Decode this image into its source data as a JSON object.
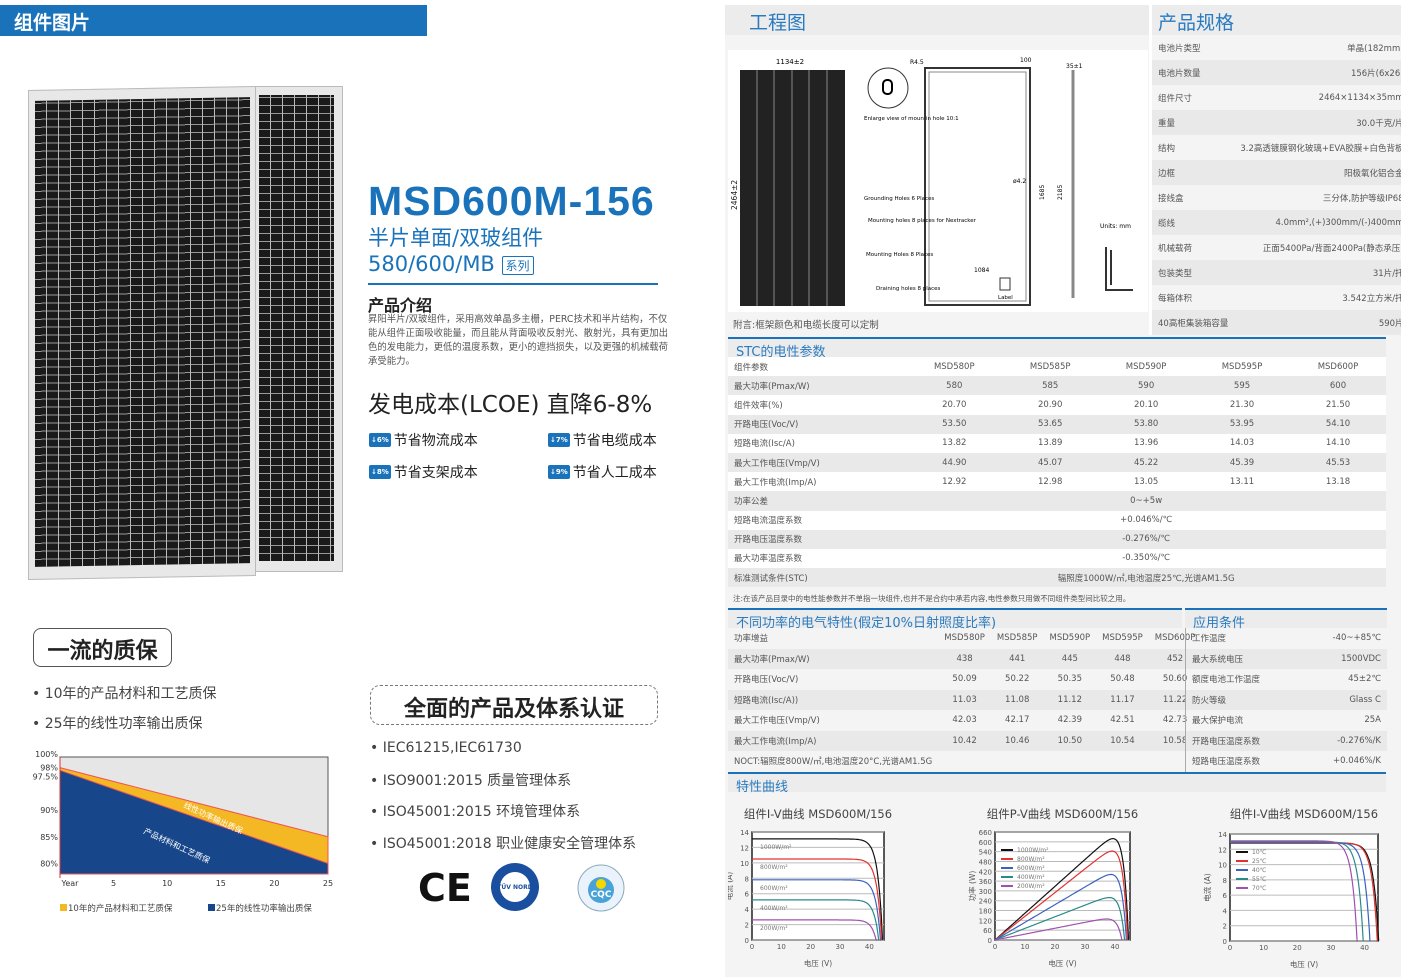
{
  "left": {
    "header": "组件图片",
    "quality_title": "一流的质保",
    "quality_items": [
      "10年的产品材料和工艺质保",
      "25年的线性功率输出质保"
    ]
  },
  "product": {
    "model": "MSD600M-156",
    "subtitle": "半片单面/双玻组件",
    "series": "580/600/MB",
    "series_tag": "系列",
    "intro_title": "产品介绍",
    "intro_text": "昇阳半片/双玻组件，采用高效单晶多主栅，PERC技术和半片结构，不仅能从组件正面吸收能量，而且能从背面吸收反射光、散射光，具有更加出色的发电能力，更低的温度系数，更小的遮挡损失，以及更强的机械载荷承受能力。",
    "lcoe": "发电成本(LCOE) 直降6-8%",
    "features": [
      {
        "badge": "↓6%",
        "label": "节省物流成本"
      },
      {
        "badge": "↓7%",
        "label": "节省电缆成本"
      },
      {
        "badge": "↓8%",
        "label": "节省支架成本"
      },
      {
        "badge": "↓9%",
        "label": "节省人工成本"
      }
    ]
  },
  "certs": {
    "title": "全面的产品及体系认证",
    "items": [
      "IEC61215,IEC61730",
      "ISO9001:2015 质量管理体系",
      "ISO45001:2015 环境管理体系",
      "ISO45001:2018 职业健康安全管理体系"
    ],
    "logos": [
      "CE",
      "TÜV NORD Type Tested",
      "CQC"
    ]
  },
  "drawing": {
    "header": "工程图",
    "note": "附言:框架颜色和电缆长度可以定制",
    "dims": [
      "1134±2",
      "2464±2",
      "R4.5",
      "100",
      "35±1",
      "1685",
      "2185",
      "400",
      "1084",
      "ø4.2",
      "35"
    ],
    "labels": [
      "Enlarge view of mountin  hole 10:1",
      "Grounding Holes 6 Places",
      "Mounting holes 8 places for Nextracker",
      "Mounting Holes 8 Places",
      "Draining holes 8 places",
      "Label",
      "Units:  mm"
    ]
  },
  "specs": {
    "header": "产品规格",
    "rows": [
      [
        "电池片类型",
        "单晶(182mm)"
      ],
      [
        "电池片数量",
        "156片(6x26)"
      ],
      [
        "组件尺寸",
        "2464×1134×35mm"
      ],
      [
        "重量",
        "30.0千克/片"
      ],
      [
        "结构",
        "3.2高透镀膜钢化玻璃+EVA胶膜+白色背板"
      ],
      [
        "边框",
        "阳极氧化铝合金"
      ],
      [
        "接线盒",
        "三分体,防护等级IP68"
      ],
      [
        "缆线",
        "4.0mm²,(+)300mm/(-)400mm"
      ],
      [
        "机械载荷",
        "正面5400Pa/背面2400Pa(静态承压)"
      ],
      [
        "包装类型",
        "31片/托"
      ],
      [
        "每箱体积",
        "3.542立方米/托"
      ],
      [
        "40高柜集装箱容量",
        "590片"
      ]
    ]
  },
  "stc": {
    "header": "STC的电性参数",
    "columns": [
      "组件参数",
      "MSD580P",
      "MSD585P",
      "MSD590P",
      "MSD595P",
      "MSD600P"
    ],
    "rows": [
      [
        "最大功率(Pmax/W)",
        "580",
        "585",
        "590",
        "595",
        "600"
      ],
      [
        "组件效率(%)",
        "20.70",
        "20.90",
        "20.10",
        "21.30",
        "21.50"
      ],
      [
        "开路电压(Voc/V)",
        "53.50",
        "53.65",
        "53.80",
        "53.95",
        "54.10"
      ],
      [
        "短路电流(Isc/A)",
        "13.82",
        "13.89",
        "13.96",
        "14.03",
        "14.10"
      ],
      [
        "最大工作电压(Vmp/V)",
        "44.90",
        "45.07",
        "45.22",
        "45.39",
        "45.53"
      ],
      [
        "最大工作电流(Imp/A)",
        "12.92",
        "12.98",
        "13.05",
        "13.11",
        "13.18"
      ]
    ],
    "span_rows": [
      [
        "功率公差",
        "0~+5w"
      ],
      [
        "短路电流温度系数",
        "+0.046%/℃"
      ],
      [
        "开路电压温度系数",
        "-0.276%/℃"
      ],
      [
        "最大功率温度系数",
        "-0.350%/℃"
      ],
      [
        "标准测试条件(STC)",
        "辐照度1000W/㎡,电池温度25℃,光谱AM1.5G"
      ]
    ],
    "note": "注:在该产品目录中的电性能参数并不单指一块组件,也并不是合约中承若内容,电性参数只用做不同组件类型间比较之用。"
  },
  "noct": {
    "header": "不同功率的电气特性(假定10%日射照度比率)",
    "columns": [
      "功率增益",
      "MSD580P",
      "MSD585P",
      "MSD590P",
      "MSD595P",
      "MSD600P"
    ],
    "rows": [
      [
        "最大功率(Pmax/W)",
        "438",
        "441",
        "445",
        "448",
        "452"
      ],
      [
        "开路电压(Voc/V)",
        "50.09",
        "50.22",
        "50.35",
        "50.48",
        "50.60"
      ],
      [
        "短路电流(Isc/A))",
        "11.03",
        "11.08",
        "11.12",
        "11.17",
        "11.22"
      ],
      [
        "最大工作电压(Vmp/V)",
        "42.03",
        "42.17",
        "42.39",
        "42.51",
        "42.73"
      ],
      [
        "最大工作电流(Imp/A)",
        "10.42",
        "10.46",
        "10.50",
        "10.54",
        "10.58"
      ]
    ],
    "note": "NOCT:辐照度800W/㎡,电池温度20°C,光谱AM1.5G"
  },
  "conditions": {
    "header": "应用条件",
    "rows": [
      [
        "工作温度",
        "-40~+85℃"
      ],
      [
        "最大系统电压",
        "1500VDC"
      ],
      [
        "额度电池工作温度",
        "45±2℃"
      ],
      [
        "防火等级",
        "Glass C"
      ],
      [
        "最大保护电流",
        "25A"
      ],
      [
        "开路电压温度系数",
        "-0.276%/K"
      ],
      [
        "短路电压温度系数",
        "+0.046%/K"
      ]
    ]
  },
  "curves_header": "特性曲线",
  "colors": {
    "brand": "#1a73ba",
    "warranty_yellow": "#f4b824",
    "warranty_blue": "#17478a"
  },
  "chart_data": [
    {
      "type": "area",
      "title": "",
      "xlabel": "Year",
      "x_ticks": [
        "Year",
        "5",
        "10",
        "15",
        "20",
        "25"
      ],
      "y_ticks": [
        "100%",
        "98%",
        "97.5%",
        "90%",
        "85%",
        "80%"
      ],
      "xlim": [
        0,
        25
      ],
      "ylim": [
        78,
        100
      ],
      "series": [
        {
          "name": "10年的产品材料和工艺质保",
          "color": "#f4b824",
          "x": [
            0,
            25
          ],
          "y": [
            98,
            85
          ]
        },
        {
          "name": "25年的线性功率输出质保",
          "color": "#17478a",
          "x": [
            0,
            25
          ],
          "y": [
            97.5,
            80
          ]
        }
      ],
      "annotations": [
        "线性功率输出质保",
        "产品材料和工艺质保"
      ],
      "legend": "bottom"
    },
    {
      "type": "line",
      "title": "组件I-V曲线 MSD600M/156",
      "xlabel": "电压 (V)",
      "ylabel": "电流 (A)",
      "xlim": [
        0,
        45
      ],
      "ylim": [
        0,
        14
      ],
      "x_ticks": [
        0,
        10,
        20,
        30,
        40
      ],
      "y_ticks": [
        0,
        2,
        4,
        6,
        8,
        10,
        12,
        14
      ],
      "series": [
        {
          "name": "1000W/m²",
          "color": "#111111",
          "isc": 13.1,
          "voc": 44.5
        },
        {
          "name": "800W/m²",
          "color": "#e53030",
          "isc": 10.5,
          "voc": 44.2
        },
        {
          "name": "600W/m²",
          "color": "#3a63c0",
          "isc": 7.8,
          "voc": 43.8
        },
        {
          "name": "400W/m²",
          "color": "#2a8a88",
          "isc": 5.2,
          "voc": 43.2
        },
        {
          "name": "200W/m²",
          "color": "#a050b0",
          "isc": 2.6,
          "voc": 42.3
        }
      ]
    },
    {
      "type": "line",
      "title": "组件P-V曲线 MSD600M/156",
      "xlabel": "电压 (V)",
      "ylabel": "功率 (W)",
      "xlim": [
        0,
        45
      ],
      "ylim": [
        0,
        660
      ],
      "x_ticks": [
        0,
        10,
        20,
        30,
        40
      ],
      "y_ticks": [
        0,
        60,
        120,
        180,
        240,
        300,
        360,
        420,
        480,
        540,
        600,
        660
      ],
      "series": [
        {
          "name": "1000W/m²",
          "color": "#111111",
          "isc": 16.4,
          "voc": 44.5
        },
        {
          "name": "800W/m²",
          "color": "#e53030",
          "isc": 14.5,
          "voc": 44.2
        },
        {
          "name": "600W/m²",
          "color": "#3a63c0",
          "isc": 10.8,
          "voc": 43.8
        },
        {
          "name": "400W/m²",
          "color": "#2a8a88",
          "isc": 7.1,
          "voc": 43.2
        },
        {
          "name": "200W/m²",
          "color": "#a050b0",
          "isc": 3.6,
          "voc": 42.3
        }
      ]
    },
    {
      "type": "line",
      "title": "组件I-V曲线 MSD600M/156",
      "xlabel": "电压 (V)",
      "ylabel": "电流 (A)",
      "xlim": [
        0,
        44
      ],
      "ylim": [
        0,
        14
      ],
      "x_ticks": [
        0,
        10,
        20,
        30,
        40
      ],
      "y_ticks": [
        0,
        2,
        4,
        6,
        8,
        10,
        12,
        14
      ],
      "series": [
        {
          "name": "10℃",
          "color": "#111111",
          "isc": 12.8,
          "voc": 44.2
        },
        {
          "name": "25℃",
          "color": "#e53030",
          "isc": 12.85,
          "voc": 43.8
        },
        {
          "name": "40℃",
          "color": "#3a63c0",
          "isc": 12.9,
          "voc": 41.6
        },
        {
          "name": "55℃",
          "color": "#2a8a88",
          "isc": 13.0,
          "voc": 39.6
        },
        {
          "name": "70℃",
          "color": "#a050b0",
          "isc": 13.1,
          "voc": 37.8
        }
      ]
    }
  ]
}
